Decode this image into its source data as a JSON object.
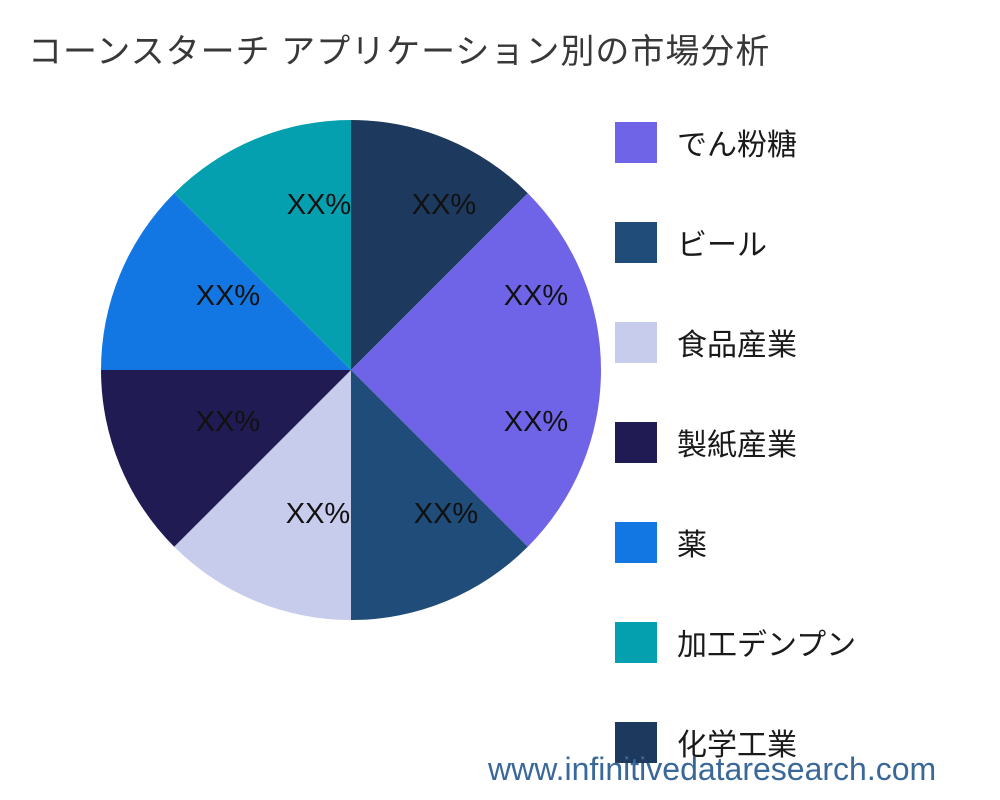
{
  "title": "コーンスターチ アプリケーション別の市場分析",
  "watermark": "www.infinitivedataresearch.com",
  "chart_data": {
    "type": "pie",
    "title": "コーンスターチ アプリケーション別の市場分析",
    "value_unit": "percent",
    "start_angle_deg": 0,
    "direction": "clockwise",
    "legend_position": "right",
    "slices": [
      {
        "label": "でん粉糖",
        "value": 12.5,
        "value_label": "XX%",
        "color": "#6F64E8"
      },
      {
        "label": "ビール",
        "value": 12.5,
        "value_label": "XX%",
        "color": "#1F4C78"
      },
      {
        "label": "食品産業",
        "value": 12.5,
        "value_label": "XX%",
        "color": "#C8CCEC"
      },
      {
        "label": "製紙産業",
        "value": 12.5,
        "value_label": "XX%",
        "color": "#201B53"
      },
      {
        "label": "薬",
        "value": 12.5,
        "value_label": "XX%",
        "color": "#1277E2"
      },
      {
        "label": "加工デンプン",
        "value": 12.5,
        "value_label": "XX%",
        "color": "#04A0B0"
      },
      {
        "label": "化学工業",
        "value": 12.5,
        "value_label": "XX%",
        "color": "#1E395E"
      },
      {
        "label": "",
        "value": 12.5,
        "value_label": "XX%",
        "color": "#6F64E8"
      }
    ],
    "legend": [
      {
        "label": "でん粉糖",
        "color": "#6F64E8"
      },
      {
        "label": "ビール",
        "color": "#1F4C78"
      },
      {
        "label": "食品産業",
        "color": "#C8CCEC"
      },
      {
        "label": "製紙産業",
        "color": "#201B53"
      },
      {
        "label": "薬",
        "color": "#1277E2"
      },
      {
        "label": "加工デンプン",
        "color": "#04A0B0"
      },
      {
        "label": "化学工業",
        "color": "#1E395E"
      }
    ]
  }
}
